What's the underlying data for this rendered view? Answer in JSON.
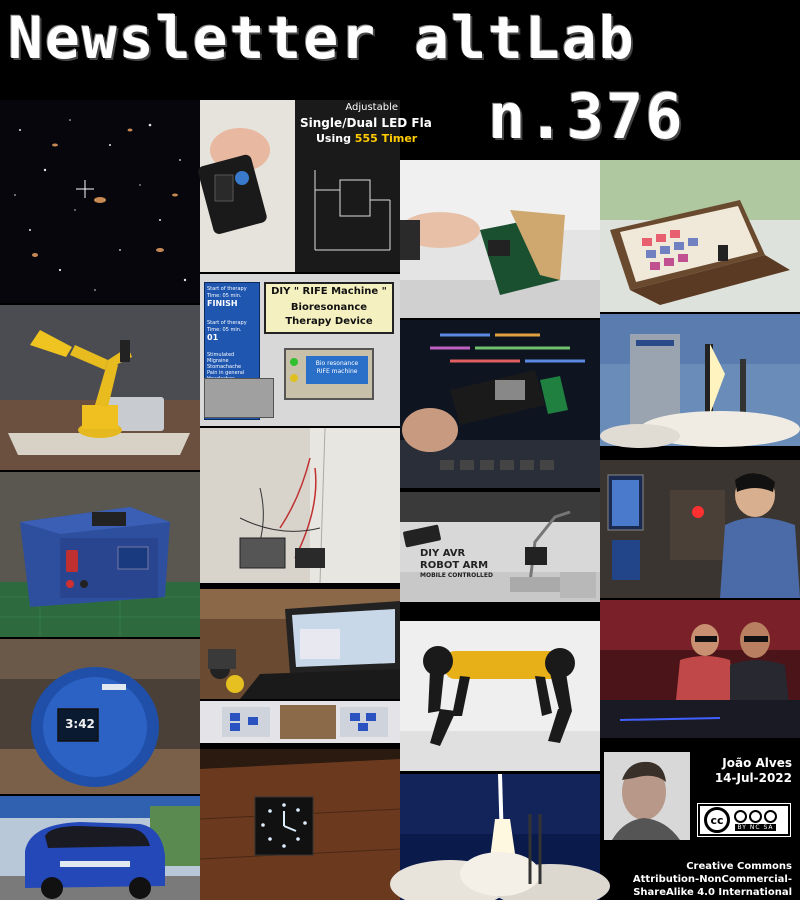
{
  "title": {
    "line1": "Newsletter altLab",
    "line2": "n.376"
  },
  "tiles": {
    "led_flasher": {
      "heading1": "Adjustable",
      "heading2": "Single/Dual LED Fla",
      "heading3_prefix": "Using ",
      "heading3_accent": "555 Timer",
      "accent_color": "#ffcc00"
    },
    "rife": {
      "heading": "DIY \" RIFE Machine \"",
      "line2": "Bioresonance",
      "line3": "Therapy Device",
      "screen_a1": "Start of therapy",
      "screen_a2": "Time: 05 min.",
      "screen_a3": "FINISH",
      "screen_b1": "Start of therapy",
      "screen_b2": "Time: 05 min.",
      "screen_b3": "01",
      "screen_c1": "Stimulated",
      "screen_c2": "Migraine",
      "screen_c3": "Stomachache",
      "screen_c4": "Pain in general",
      "screen_c5": "Headaches",
      "lcd1": "Bio resonance",
      "lcd2": "RIFE machine"
    },
    "avr_arm": {
      "line1": "DIY AVR",
      "line2": "ROBOT ARM",
      "line3": "MOBILE CONTROLLED"
    },
    "pocket_watch": {
      "time": "3:42"
    }
  },
  "author": {
    "name": "João Alves",
    "date": "14-Jul-2022"
  },
  "license": {
    "badge_cc": "cc",
    "badge_terms": "BY  NC  SA",
    "line1": "Creative Commons",
    "line2": "Attribution-NonCommercial-",
    "line3": "ShareAlike 4.0 International"
  }
}
